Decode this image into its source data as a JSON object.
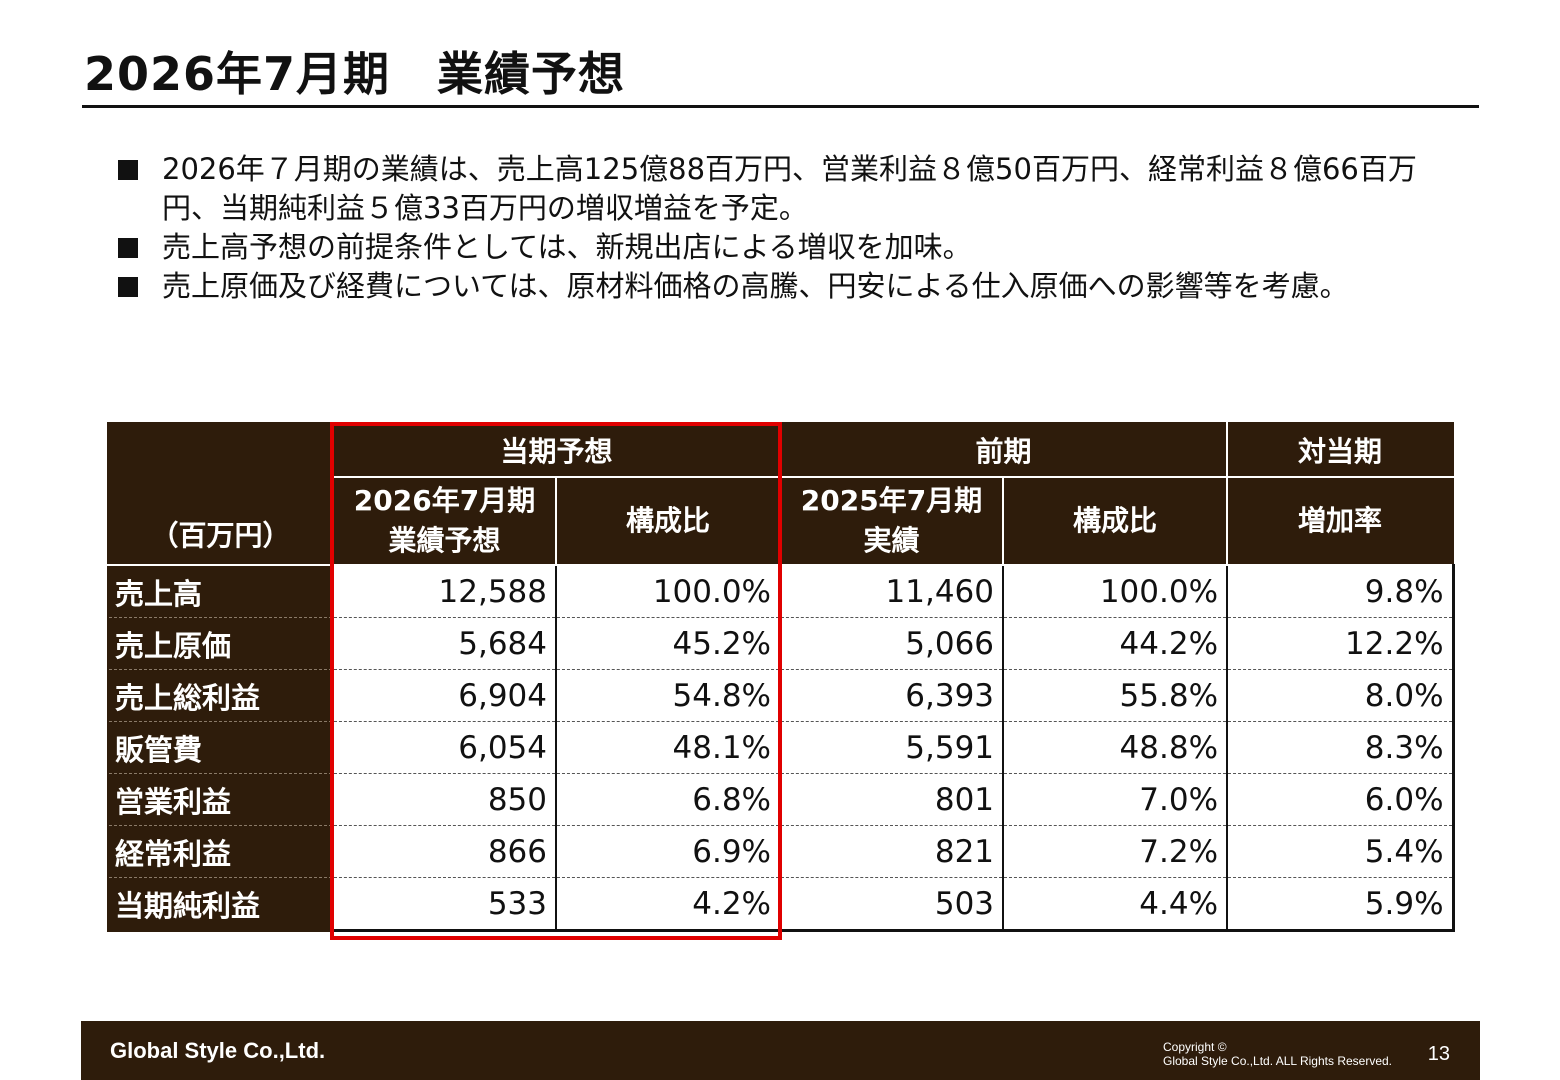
{
  "page": {
    "title": "2026年7月期　業績予想",
    "bullets": [
      "2026年７月期の業績は、売上高125億88百万円、営業利益８億50百万円、経常利益８億66百万円、当期純利益５億33百万円の増収増益を予定。",
      "売上高予想の前提条件としては、新規出店による増収を加味。",
      "売上原価及び経費については、原材料価格の高騰、円安による仕入原価への影響等を考慮。"
    ]
  },
  "table": {
    "unit_label": "（百万円）",
    "group_headers": [
      "当期予想",
      "前期",
      "対当期"
    ],
    "sub_headers": [
      [
        "2026年7月期",
        "業績予想"
      ],
      [
        "構成比"
      ],
      [
        "2025年7月期",
        "実績"
      ],
      [
        "構成比"
      ],
      [
        "増加率"
      ]
    ],
    "rows": [
      {
        "label": "売上高",
        "values": [
          "12,588",
          "100.0%",
          "11,460",
          "100.0%",
          "9.8%"
        ]
      },
      {
        "label": "売上原価",
        "values": [
          "5,684",
          "45.2%",
          "5,066",
          "44.2%",
          "12.2%"
        ]
      },
      {
        "label": "売上総利益",
        "values": [
          "6,904",
          "54.8%",
          "6,393",
          "55.8%",
          "8.0%"
        ]
      },
      {
        "label": "販管費",
        "values": [
          "6,054",
          "48.1%",
          "5,591",
          "48.8%",
          "8.3%"
        ]
      },
      {
        "label": "営業利益",
        "values": [
          "850",
          "6.8%",
          "801",
          "7.0%",
          "6.0%"
        ]
      },
      {
        "label": "経常利益",
        "values": [
          "866",
          "6.9%",
          "821",
          "7.2%",
          "5.4%"
        ]
      },
      {
        "label": "当期純利益",
        "values": [
          "533",
          "4.2%",
          "503",
          "4.4%",
          "5.9%"
        ]
      }
    ],
    "highlight_color": "#e00000",
    "header_color": "#2e1c0b"
  },
  "footer": {
    "company": "Global Style Co.,Ltd.",
    "copyright_line1": "Copyright ©",
    "copyright_line2": "Global Style Co.,Ltd.  ALL Rights Reserved.",
    "page_number": "13"
  }
}
